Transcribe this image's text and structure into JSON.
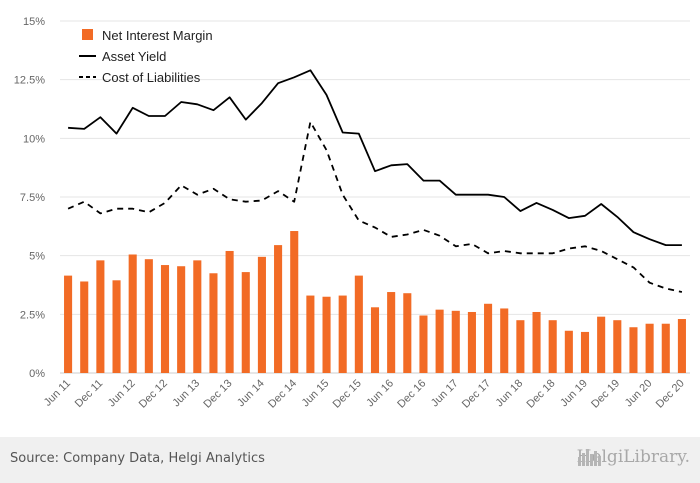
{
  "footer": {
    "source": "Source: Company Data, Helgi Analytics",
    "logo_text": "HelgiLibrary."
  },
  "colors": {
    "bar": "#f26b25",
    "line": "#000000",
    "grid": "#e5e5e5",
    "axis_text": "#666666"
  },
  "chart_data": {
    "type": "bar",
    "title": "",
    "xlabel": "",
    "ylabel": "",
    "ylim": [
      0,
      15
    ],
    "y_ticks": [
      0,
      2.5,
      5,
      7.5,
      10,
      12.5,
      15
    ],
    "y_tick_labels": [
      "0%",
      "2.5%",
      "5%",
      "7.5%",
      "10%",
      "12.5%",
      "15%"
    ],
    "grid": "horizontal",
    "legend_position": "top-left",
    "categories": [
      "Jun 11",
      "Sep 11",
      "Dec 11",
      "Mar 12",
      "Jun 12",
      "Sep 12",
      "Dec 12",
      "Mar 13",
      "Jun 13",
      "Sep 13",
      "Dec 13",
      "Mar 14",
      "Jun 14",
      "Sep 14",
      "Dec 14",
      "Mar 15",
      "Jun 15",
      "Sep 15",
      "Dec 15",
      "Mar 16",
      "Jun 16",
      "Sep 16",
      "Dec 16",
      "Mar 17",
      "Jun 17",
      "Sep 17",
      "Dec 17",
      "Mar 18",
      "Jun 18",
      "Sep 18",
      "Dec 18",
      "Mar 19",
      "Jun 19",
      "Sep 19",
      "Dec 19",
      "Mar 20",
      "Jun 20",
      "Sep 20",
      "Dec 20"
    ],
    "x_tick_labels": [
      "Jun 11",
      "Dec 11",
      "Jun 12",
      "Dec 12",
      "Jun 13",
      "Dec 13",
      "Jun 14",
      "Dec 14",
      "Jun 15",
      "Dec 15",
      "Jun 16",
      "Dec 16",
      "Jun 17",
      "Dec 17",
      "Jun 18",
      "Dec 18",
      "Jun 19",
      "Dec 19",
      "Jun 20",
      "Dec 20"
    ],
    "series": [
      {
        "name": "Net Interest Margin",
        "type": "bar",
        "values": [
          4.15,
          3.9,
          4.8,
          3.95,
          5.05,
          4.85,
          4.6,
          4.55,
          4.8,
          4.25,
          5.2,
          4.3,
          4.95,
          5.45,
          6.05,
          3.3,
          3.25,
          3.3,
          4.15,
          2.8,
          3.45,
          3.4,
          2.45,
          2.7,
          2.65,
          2.6,
          2.95,
          2.75,
          2.25,
          2.6,
          2.25,
          1.8,
          1.75,
          2.4,
          2.25,
          1.95,
          2.1,
          2.1,
          2.3
        ]
      },
      {
        "name": "Asset Yield",
        "type": "line",
        "style": "solid",
        "values": [
          10.45,
          10.4,
          10.9,
          10.2,
          11.3,
          10.95,
          10.95,
          11.55,
          11.45,
          11.2,
          11.75,
          10.8,
          11.5,
          12.35,
          12.6,
          12.9,
          11.85,
          10.25,
          10.2,
          8.6,
          8.85,
          8.9,
          8.2,
          8.2,
          7.6,
          7.6,
          7.6,
          7.5,
          6.9,
          7.25,
          6.95,
          6.6,
          6.7,
          7.2,
          6.65,
          6.0,
          5.7,
          5.45,
          5.45
        ]
      },
      {
        "name": "Cost of Liabilities",
        "type": "line",
        "style": "dashed",
        "values": [
          7.0,
          7.3,
          6.8,
          7.0,
          7.0,
          6.85,
          7.25,
          8.0,
          7.6,
          7.85,
          7.4,
          7.3,
          7.35,
          7.75,
          7.3,
          10.7,
          9.5,
          7.6,
          6.5,
          6.2,
          5.8,
          5.9,
          6.1,
          5.85,
          5.4,
          5.5,
          5.1,
          5.2,
          5.1,
          5.1,
          5.1,
          5.3,
          5.4,
          5.2,
          4.85,
          4.5,
          3.85,
          3.6,
          3.45
        ]
      }
    ]
  }
}
